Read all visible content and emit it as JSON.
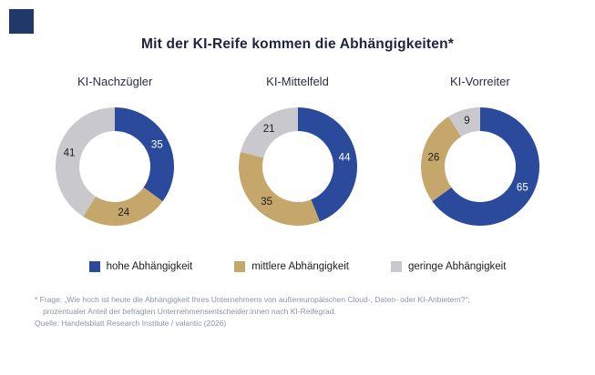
{
  "logo": {
    "color": "#21386b"
  },
  "chart_data": {
    "type": "pie",
    "subtype": "donut",
    "title": "Mit der KI-Reife kommen die Abhängigkeiten*",
    "series_labels": [
      "hohe Abhängigkeit",
      "mittlere Abhängigkeit",
      "geringe Abhängigkeit"
    ],
    "colors": [
      "#2b4a9c",
      "#c5a76b",
      "#c9c9cd"
    ],
    "label_text_colors": [
      "#ffffff",
      "#1d1d1b",
      "#1d1d1b"
    ],
    "start_angle": 0,
    "direction": "clockwise",
    "charts": [
      {
        "title": "KI-Nachzügler",
        "values": [
          35,
          24,
          41
        ]
      },
      {
        "title": "KI-Mittelfeld",
        "values": [
          44,
          35,
          21
        ]
      },
      {
        "title": "KI-Vorreiter",
        "values": [
          65,
          26,
          9
        ]
      }
    ]
  },
  "legend": {
    "items": [
      {
        "label": "hohe Abhängigkeit",
        "color": "#2b4a9c"
      },
      {
        "label": "mittlere Abhängigkeit",
        "color": "#c5a76b"
      },
      {
        "label": "geringe Abhängigkeit",
        "color": "#c9c9cd"
      }
    ]
  },
  "footnote": {
    "line1": "* Frage: „Wie hoch ist heute die Abhängigkeit Ihres Unternehmens von außereuropäischen Cloud-, Daten- oder KI-Anbietern?“;",
    "line2": "prozentualer Anteil der befragten Unternehmensentscheider:innen nach KI-Reifegrad.",
    "source": "Quelle: Handelsblatt Research Institute / valantic (2026)"
  }
}
